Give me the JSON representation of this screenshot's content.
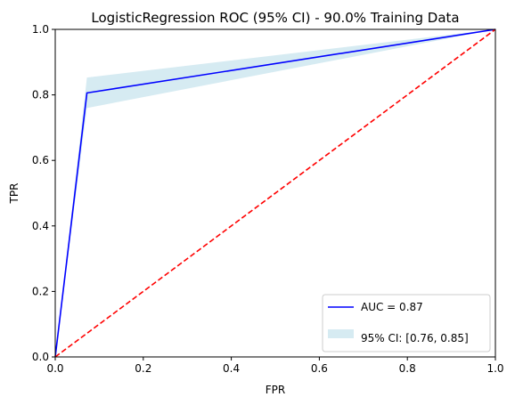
{
  "chart_data": {
    "type": "line",
    "title": "LogisticRegression ROC (95% CI) - 90.0% Training Data",
    "xlabel": "FPR",
    "ylabel": "TPR",
    "xlim": [
      0.0,
      1.0
    ],
    "ylim": [
      0.0,
      1.0
    ],
    "xticks": [
      "0.0",
      "0.2",
      "0.4",
      "0.6",
      "0.8",
      "1.0"
    ],
    "yticks": [
      "0.0",
      "0.2",
      "0.4",
      "0.6",
      "0.8",
      "1.0"
    ],
    "grid": false,
    "legend_position": "lower-right",
    "series": [
      {
        "name": "AUC = 0.87",
        "color": "#0000ff",
        "x": [
          0.0,
          0.072,
          1.0
        ],
        "y": [
          0.0,
          0.806,
          1.0
        ]
      },
      {
        "name": "",
        "color": "#ff0000",
        "dashed": true,
        "x": [
          0.0,
          1.0
        ],
        "y": [
          0.0,
          1.0
        ]
      }
    ],
    "ci_band": {
      "name": "95% CI: [0.76, 0.85]",
      "color": "#add8e6",
      "x": [
        0.0,
        0.072,
        1.0
      ],
      "lower": [
        0.0,
        0.76,
        1.0
      ],
      "upper": [
        0.0,
        0.853,
        1.0
      ]
    }
  }
}
